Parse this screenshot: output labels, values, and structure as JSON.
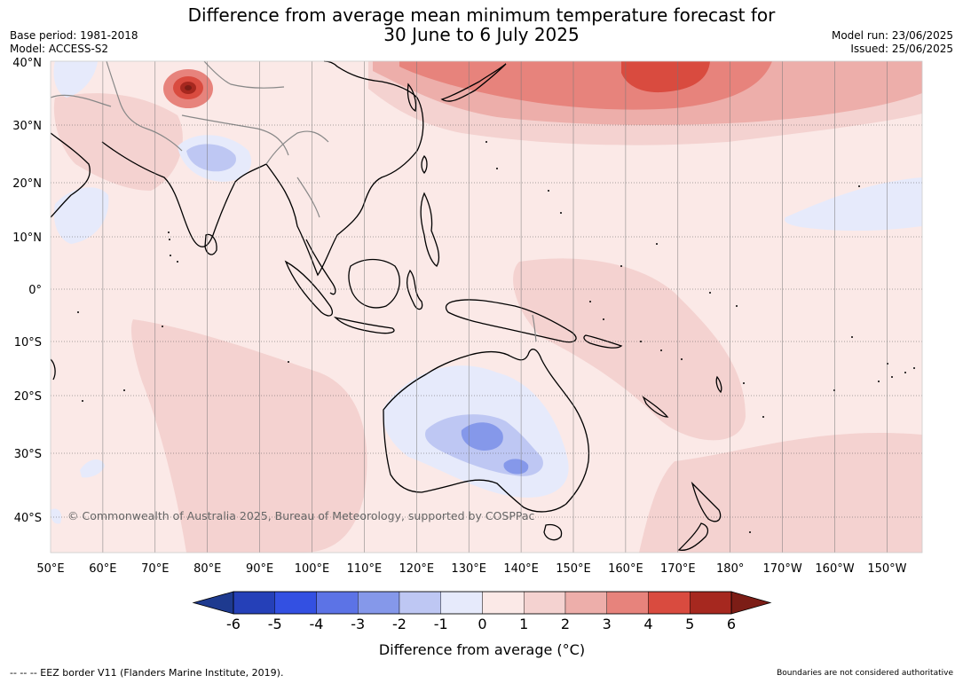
{
  "title": {
    "line1": "Difference from average mean minimum temperature forecast for",
    "line2": "30 June to 6 July 2025"
  },
  "meta_left": {
    "base_period": "Base period: 1981-2018",
    "model": "Model: ACCESS-S2"
  },
  "meta_right": {
    "model_run": "Model run: 23/06/2025",
    "issued": "Issued: 25/06/2025"
  },
  "map": {
    "lat_labels": [
      "40°N",
      "30°N",
      "20°N",
      "10°N",
      "0°",
      "10°S",
      "20°S",
      "30°S",
      "40°S"
    ],
    "lon_labels": [
      "50°E",
      "60°E",
      "70°E",
      "80°E",
      "90°E",
      "100°E",
      "110°E",
      "120°E",
      "130°E",
      "140°E",
      "150°E",
      "160°E",
      "170°E",
      "180°",
      "170°W",
      "160°W",
      "150°W"
    ],
    "copyright": "© Commonwealth of Australia 2025, Bureau of Meteorology, supported by COSPPac",
    "ocean_color": "#fbe9e7",
    "grid": true
  },
  "colorbar": {
    "ticks": [
      "-6",
      "-5",
      "-4",
      "-3",
      "-2",
      "-1",
      "0",
      "1",
      "2",
      "3",
      "4",
      "5",
      "6"
    ],
    "colors": [
      "#1e3a8f",
      "#2540b8",
      "#3350e2",
      "#5c73e6",
      "#8598ea",
      "#bec7f3",
      "#e6eafb",
      "#fbe9e7",
      "#f4d2d0",
      "#edaeaa",
      "#e7837c",
      "#d94b3f",
      "#a6281f",
      "#7c1d16"
    ],
    "label": "Difference from average (°C)"
  },
  "footer": {
    "eez": "--  --  -- EEZ border V11 (Flanders Marine Institute, 2019).",
    "boundaries": "Boundaries are not considered authoritative"
  }
}
